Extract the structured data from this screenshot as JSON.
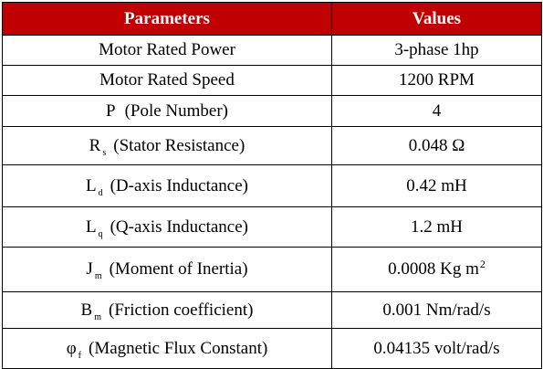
{
  "header": {
    "parameters": "Parameters",
    "values": "Values"
  },
  "rows": [
    {
      "label": "Motor Rated Power",
      "value": "3-phase 1hp"
    },
    {
      "label": "Motor Rated Speed",
      "value": "1200 RPM"
    },
    {
      "symbol": "P",
      "label": "(Pole Number)",
      "value": "4"
    },
    {
      "symbol": "R",
      "sub": "s",
      "label": "(Stator Resistance)",
      "value": "0.048 Ω"
    },
    {
      "symbol": "L",
      "sub": "d",
      "label": "(D-axis Inductance)",
      "value": "0.42 mH"
    },
    {
      "symbol": "L",
      "sub": "q",
      "label": "(Q-axis Inductance)",
      "value": "1.2 mH"
    },
    {
      "symbol": "J",
      "sub": "m",
      "label": "(Moment of Inertia)",
      "value": "0.0008 Kg m",
      "value_sup": "2"
    },
    {
      "symbol": "B",
      "sub": "m",
      "label": "(Friction coefficient)",
      "value": "0.001 Nm/rad/s"
    },
    {
      "symbol": "φ",
      "sub": "f",
      "label": "(Magnetic Flux Constant)",
      "value": "0.04135 volt/rad/s"
    }
  ]
}
